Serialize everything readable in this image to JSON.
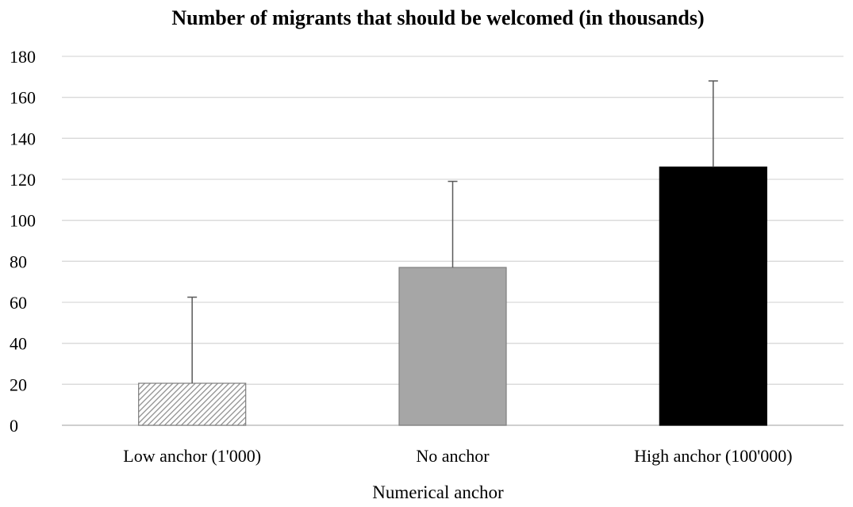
{
  "chart_data": {
    "type": "bar",
    "title": "Number of migrants that should be welcomed (in thousands)",
    "xlabel": "Numerical anchor",
    "ylabel": "",
    "ylim": [
      0,
      180
    ],
    "yticks": [
      0,
      20,
      40,
      60,
      80,
      100,
      120,
      140,
      160,
      180
    ],
    "grid": true,
    "legend": "none",
    "categories": [
      "Low anchor (1'000)",
      "No anchor",
      "High anchor (100'000)"
    ],
    "values": [
      20.5,
      77,
      126
    ],
    "error_upper": [
      42,
      42,
      42
    ],
    "bar_styles": [
      {
        "fill": "hatched",
        "color": "#8c8c8c"
      },
      {
        "fill": "solid",
        "color": "#a6a6a6"
      },
      {
        "fill": "solid",
        "color": "#000000"
      }
    ]
  }
}
